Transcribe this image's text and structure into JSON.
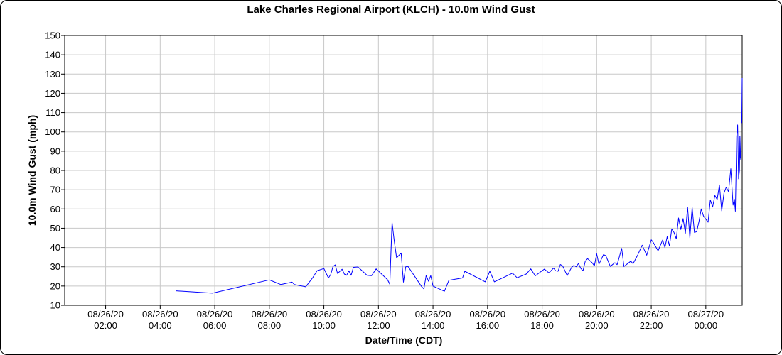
{
  "chart_data": {
    "type": "line",
    "title": "Lake Charles Regional Airport (KLCH) - 10.0m Wind Gust",
    "xlabel": "Date/Time (CDT)",
    "ylabel": "10.0m Wind Gust (mph)",
    "ylim": [
      10,
      150
    ],
    "yticks": [
      "10",
      "20",
      "30",
      "40",
      "50",
      "60",
      "70",
      "80",
      "90",
      "100",
      "110",
      "120",
      "130",
      "140",
      "150"
    ],
    "xlim": [
      "2020-08-26T00:30",
      "2020-08-27T01:20"
    ],
    "xticks": [
      {
        "t": "2020-08-26T02:00",
        "date": "08/26/20",
        "time": "02:00"
      },
      {
        "t": "2020-08-26T04:00",
        "date": "08/26/20",
        "time": "04:00"
      },
      {
        "t": "2020-08-26T06:00",
        "date": "08/26/20",
        "time": "06:00"
      },
      {
        "t": "2020-08-26T08:00",
        "date": "08/26/20",
        "time": "08:00"
      },
      {
        "t": "2020-08-26T10:00",
        "date": "08/26/20",
        "time": "10:00"
      },
      {
        "t": "2020-08-26T12:00",
        "date": "08/26/20",
        "time": "12:00"
      },
      {
        "t": "2020-08-26T14:00",
        "date": "08/26/20",
        "time": "14:00"
      },
      {
        "t": "2020-08-26T16:00",
        "date": "08/26/20",
        "time": "16:00"
      },
      {
        "t": "2020-08-26T18:00",
        "date": "08/26/20",
        "time": "18:00"
      },
      {
        "t": "2020-08-26T20:00",
        "date": "08/26/20",
        "time": "20:00"
      },
      {
        "t": "2020-08-26T22:00",
        "date": "08/26/20",
        "time": "22:00"
      },
      {
        "t": "2020-08-27T00:00",
        "date": "08/27/20",
        "time": "00:00"
      }
    ],
    "grid": true,
    "series": [
      {
        "color": "#0000ff",
        "points": [
          [
            "2020-08-26T04:35",
            17.5
          ],
          [
            "2020-08-26T05:55",
            16.3
          ],
          [
            "2020-08-26T08:00",
            23.2
          ],
          [
            "2020-08-26T08:25",
            20.8
          ],
          [
            "2020-08-26T08:50",
            22.0
          ],
          [
            "2020-08-26T08:55",
            20.8
          ],
          [
            "2020-08-26T09:20",
            19.6
          ],
          [
            "2020-08-26T09:35",
            24.2
          ],
          [
            "2020-08-26T09:45",
            27.9
          ],
          [
            "2020-08-26T10:00",
            29.1
          ],
          [
            "2020-08-26T10:10",
            24.2
          ],
          [
            "2020-08-26T10:15",
            26.0
          ],
          [
            "2020-08-26T10:20",
            30.1
          ],
          [
            "2020-08-26T10:25",
            31.0
          ],
          [
            "2020-08-26T10:30",
            26.5
          ],
          [
            "2020-08-26T10:40",
            28.7
          ],
          [
            "2020-08-26T10:45",
            26.2
          ],
          [
            "2020-08-26T10:50",
            25.6
          ],
          [
            "2020-08-26T10:55",
            27.9
          ],
          [
            "2020-08-26T11:00",
            25.6
          ],
          [
            "2020-08-26T11:05",
            29.7
          ],
          [
            "2020-08-26T11:15",
            29.9
          ],
          [
            "2020-08-26T11:35",
            25.6
          ],
          [
            "2020-08-26T11:45",
            25.4
          ],
          [
            "2020-08-26T11:55",
            28.9
          ],
          [
            "2020-08-26T12:10",
            25.6
          ],
          [
            "2020-08-26T12:20",
            23.3
          ],
          [
            "2020-08-26T12:25",
            20.9
          ],
          [
            "2020-08-26T12:30",
            53.0
          ],
          [
            "2020-08-26T12:35",
            43.0
          ],
          [
            "2020-08-26T12:40",
            34.7
          ],
          [
            "2020-08-26T12:50",
            37.1
          ],
          [
            "2020-08-26T12:55",
            22.0
          ],
          [
            "2020-08-26T13:00",
            30.0
          ],
          [
            "2020-08-26T13:05",
            30.2
          ],
          [
            "2020-08-26T13:35",
            19.7
          ],
          [
            "2020-08-26T13:40",
            18.5
          ],
          [
            "2020-08-26T13:45",
            25.6
          ],
          [
            "2020-08-26T13:50",
            22.5
          ],
          [
            "2020-08-26T13:55",
            25.4
          ],
          [
            "2020-08-26T14:00",
            20.0
          ],
          [
            "2020-08-26T14:25",
            17.3
          ],
          [
            "2020-08-26T14:35",
            23.0
          ],
          [
            "2020-08-26T15:05",
            24.2
          ],
          [
            "2020-08-26T15:10",
            27.7
          ],
          [
            "2020-08-26T15:55",
            22.2
          ],
          [
            "2020-08-26T16:05",
            27.7
          ],
          [
            "2020-08-26T16:15",
            22.2
          ],
          [
            "2020-08-26T16:55",
            26.7
          ],
          [
            "2020-08-26T17:05",
            24.3
          ],
          [
            "2020-08-26T17:25",
            26.2
          ],
          [
            "2020-08-26T17:35",
            28.9
          ],
          [
            "2020-08-26T17:45",
            25.3
          ],
          [
            "2020-08-26T17:55",
            27.1
          ],
          [
            "2020-08-26T18:05",
            28.8
          ],
          [
            "2020-08-26T18:15",
            26.8
          ],
          [
            "2020-08-26T18:25",
            29.3
          ],
          [
            "2020-08-26T18:30",
            27.9
          ],
          [
            "2020-08-26T18:35",
            27.7
          ],
          [
            "2020-08-26T18:40",
            31.2
          ],
          [
            "2020-08-26T18:45",
            30.5
          ],
          [
            "2020-08-26T18:55",
            25.4
          ],
          [
            "2020-08-26T19:05",
            29.8
          ],
          [
            "2020-08-26T19:10",
            30.7
          ],
          [
            "2020-08-26T19:15",
            30.0
          ],
          [
            "2020-08-26T19:20",
            31.7
          ],
          [
            "2020-08-26T19:25",
            29.2
          ],
          [
            "2020-08-26T19:30",
            27.9
          ],
          [
            "2020-08-26T19:35",
            32.9
          ],
          [
            "2020-08-26T19:40",
            34.2
          ],
          [
            "2020-08-26T19:50",
            32.1
          ],
          [
            "2020-08-26T19:55",
            30.5
          ],
          [
            "2020-08-26T20:00",
            36.8
          ],
          [
            "2020-08-26T20:05",
            31.3
          ],
          [
            "2020-08-26T20:15",
            36.3
          ],
          [
            "2020-08-26T20:20",
            35.8
          ],
          [
            "2020-08-26T20:30",
            30.2
          ],
          [
            "2020-08-26T20:40",
            32.1
          ],
          [
            "2020-08-26T20:45",
            31.1
          ],
          [
            "2020-08-26T20:55",
            39.5
          ],
          [
            "2020-08-26T21:00",
            30.1
          ],
          [
            "2020-08-26T21:15",
            32.9
          ],
          [
            "2020-08-26T21:20",
            31.6
          ],
          [
            "2020-08-26T21:30",
            36.0
          ],
          [
            "2020-08-26T21:40",
            41.2
          ],
          [
            "2020-08-26T21:50",
            36.0
          ],
          [
            "2020-08-26T22:00",
            44.0
          ],
          [
            "2020-08-26T22:05",
            42.4
          ],
          [
            "2020-08-26T22:15",
            38.3
          ],
          [
            "2020-08-26T22:25",
            43.9
          ],
          [
            "2020-08-26T22:30",
            40.0
          ],
          [
            "2020-08-26T22:35",
            45.6
          ],
          [
            "2020-08-26T22:40",
            40.8
          ],
          [
            "2020-08-26T22:45",
            49.6
          ],
          [
            "2020-08-26T22:50",
            47.8
          ],
          [
            "2020-08-26T22:55",
            44.5
          ],
          [
            "2020-08-26T23:00",
            55.3
          ],
          [
            "2020-08-26T23:05",
            49.3
          ],
          [
            "2020-08-26T23:10",
            55.0
          ],
          [
            "2020-08-26T23:15",
            47.4
          ],
          [
            "2020-08-26T23:20",
            60.9
          ],
          [
            "2020-08-26T23:25",
            45.0
          ],
          [
            "2020-08-26T23:30",
            60.8
          ],
          [
            "2020-08-26T23:35",
            47.8
          ],
          [
            "2020-08-26T23:40",
            48.2
          ],
          [
            "2020-08-26T23:45",
            53.4
          ],
          [
            "2020-08-26T23:50",
            60.0
          ],
          [
            "2020-08-26T23:55",
            56.3
          ],
          [
            "2020-08-27T00:05",
            53.1
          ],
          [
            "2020-08-27T00:10",
            64.7
          ],
          [
            "2020-08-27T00:15",
            61.0
          ],
          [
            "2020-08-27T00:20",
            67.0
          ],
          [
            "2020-08-27T00:25",
            64.9
          ],
          [
            "2020-08-27T00:30",
            72.5
          ],
          [
            "2020-08-27T00:35",
            59.0
          ],
          [
            "2020-08-27T00:40",
            68.2
          ],
          [
            "2020-08-27T00:45",
            71.3
          ],
          [
            "2020-08-27T00:50",
            69.0
          ],
          [
            "2020-08-27T00:55",
            80.9
          ],
          [
            "2020-08-27T01:00",
            62.0
          ],
          [
            "2020-08-27T01:03",
            65.0
          ],
          [
            "2020-08-27T01:05",
            58.8
          ],
          [
            "2020-08-27T01:08",
            97.6
          ],
          [
            "2020-08-27T01:10",
            103.6
          ],
          [
            "2020-08-27T01:12",
            75.6
          ],
          [
            "2020-08-27T01:14",
            80.0
          ],
          [
            "2020-08-27T01:15",
            97.7
          ],
          [
            "2020-08-27T01:16",
            87.0
          ],
          [
            "2020-08-27T01:17",
            85.5
          ],
          [
            "2020-08-27T01:18",
            107.6
          ],
          [
            "2020-08-27T01:19",
            104.8
          ],
          [
            "2020-08-27T01:20",
            127.9
          ]
        ]
      }
    ]
  }
}
